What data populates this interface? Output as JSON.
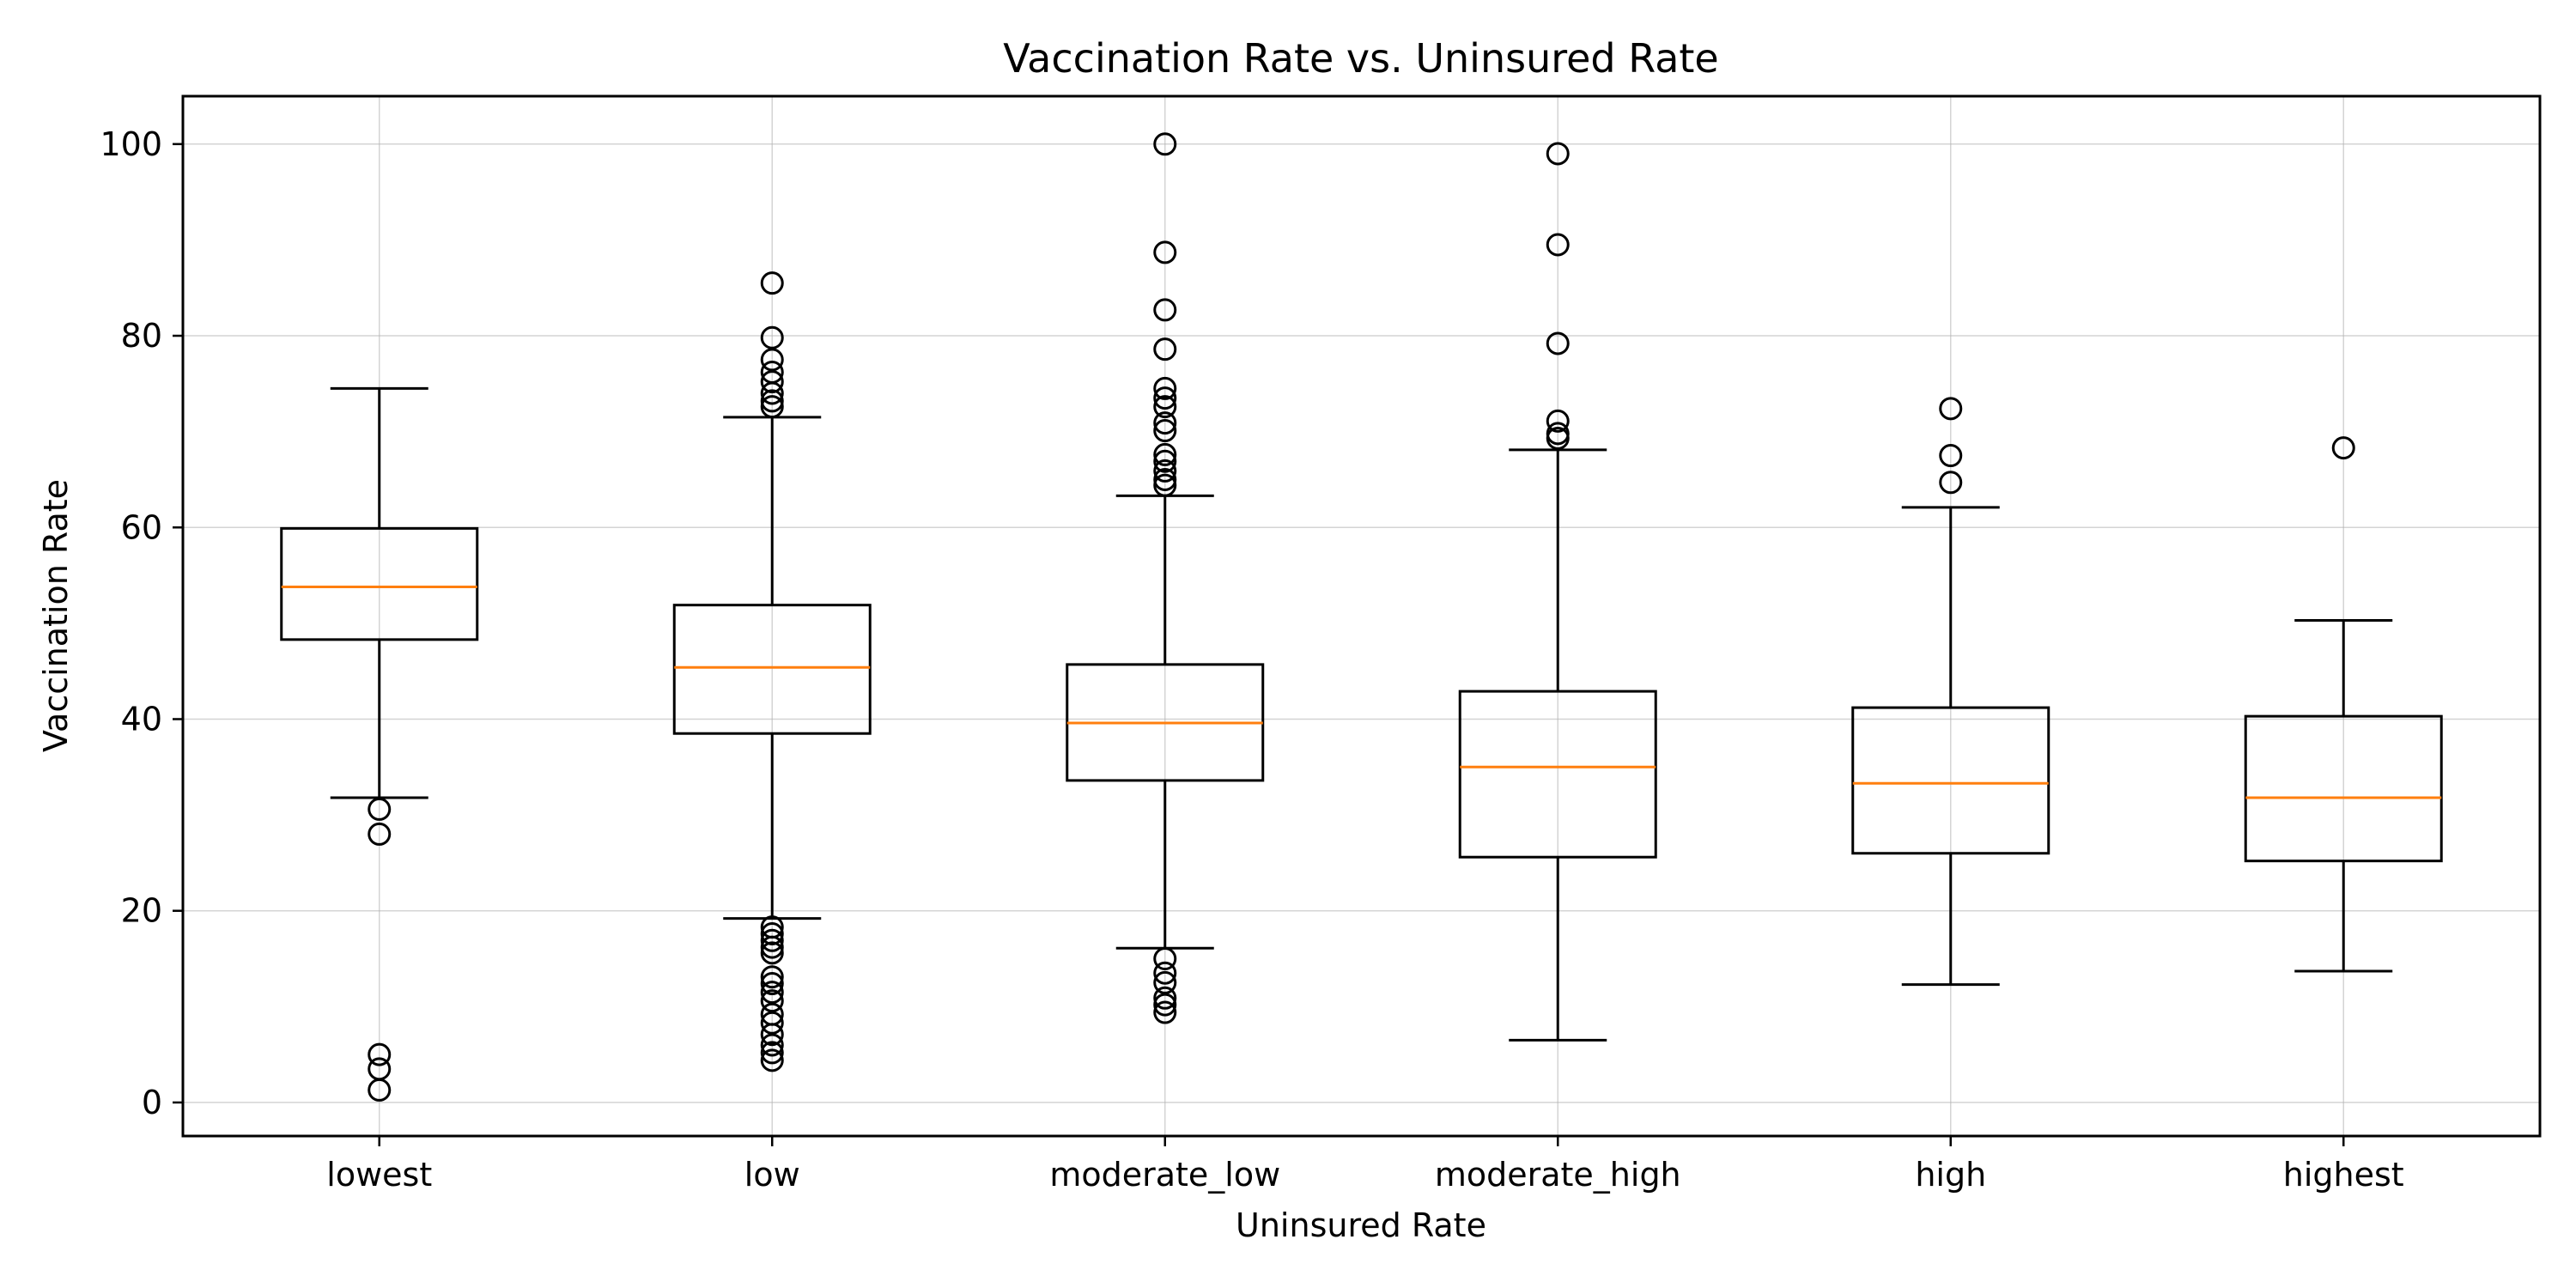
{
  "chart_data": {
    "type": "box",
    "title": "Vaccination Rate vs. Uninsured Rate",
    "xlabel": "Uninsured Rate",
    "ylabel": "Vaccination Rate",
    "ylim": [
      -3.5,
      105
    ],
    "y_ticks": [
      0,
      20,
      40,
      60,
      80,
      100
    ],
    "grid": true,
    "legend": "none",
    "colors": {
      "box": "#000000",
      "median": "#ff7f0e",
      "grid": "#b0b0b0"
    },
    "categories": [
      "lowest",
      "low",
      "moderate_low",
      "moderate_high",
      "high",
      "highest"
    ],
    "boxes": [
      {
        "category": "lowest",
        "whisker_low": 31.8,
        "q1": 48.3,
        "median": 53.8,
        "q3": 59.9,
        "whisker_high": 74.5,
        "outliers": [
          30.6,
          28.0,
          5.0,
          3.5,
          1.3
        ]
      },
      {
        "category": "low",
        "whisker_low": 19.2,
        "q1": 38.5,
        "median": 45.4,
        "q3": 51.9,
        "whisker_high": 71.5,
        "outliers": [
          85.5,
          79.8,
          77.5,
          76.2,
          75.2,
          74.0,
          73.2,
          72.6,
          18.3,
          17.6,
          16.9,
          16.2,
          15.6,
          13.1,
          12.4,
          11.5,
          10.6,
          9.2,
          8.3,
          7.1,
          6.0,
          5.2,
          4.4
        ]
      },
      {
        "category": "moderate_low",
        "whisker_low": 16.1,
        "q1": 33.6,
        "median": 39.6,
        "q3": 45.7,
        "whisker_high": 63.3,
        "outliers": [
          100.0,
          88.7,
          82.7,
          78.6,
          74.5,
          73.5,
          72.6,
          70.9,
          70.1,
          67.6,
          66.9,
          65.9,
          65.0,
          64.4,
          15.0,
          13.5,
          12.5,
          10.9,
          10.2,
          9.4
        ]
      },
      {
        "category": "moderate_high",
        "whisker_low": 6.5,
        "q1": 25.6,
        "median": 35.0,
        "q3": 42.9,
        "whisker_high": 68.1,
        "outliers": [
          99.0,
          89.5,
          79.2,
          71.1,
          69.8,
          69.3
        ]
      },
      {
        "category": "high",
        "whisker_low": 12.3,
        "q1": 26.0,
        "median": 33.3,
        "q3": 41.2,
        "whisker_high": 62.1,
        "outliers": [
          72.4,
          67.5,
          64.7
        ]
      },
      {
        "category": "highest",
        "whisker_low": 13.7,
        "q1": 25.2,
        "median": 31.8,
        "q3": 40.3,
        "whisker_high": 50.3,
        "outliers": [
          68.3
        ]
      }
    ]
  }
}
